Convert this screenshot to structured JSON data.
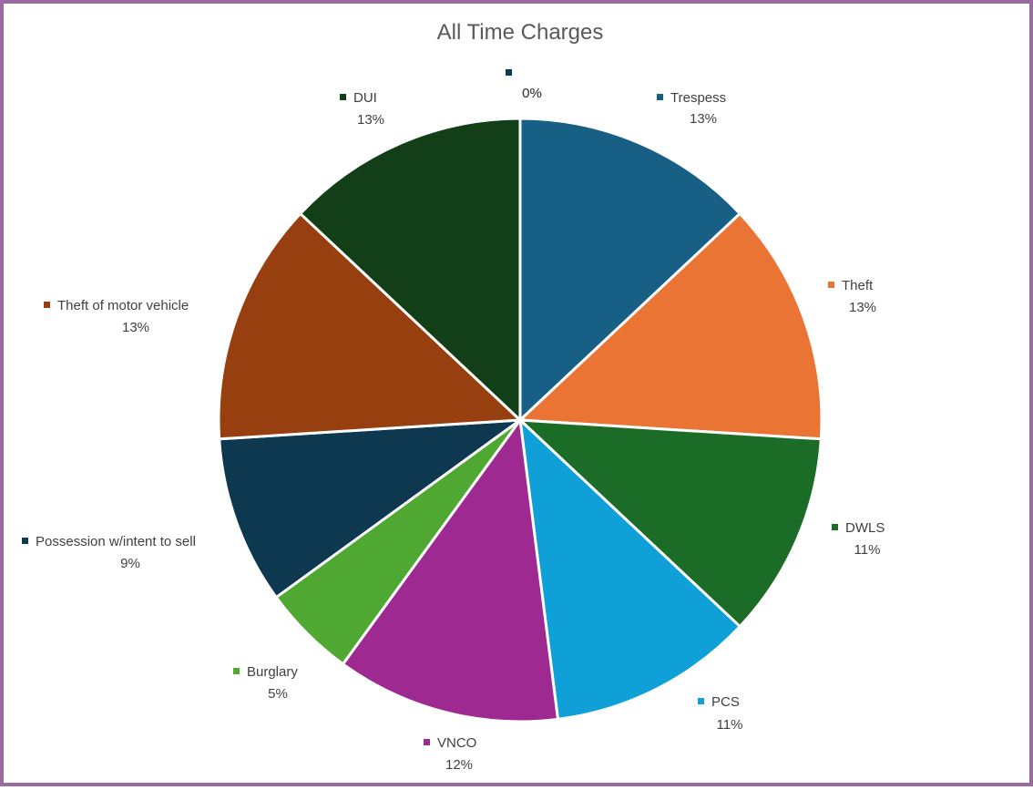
{
  "chart_data": {
    "type": "pie",
    "title": "All Time Charges",
    "legend": "none",
    "slices": [
      {
        "label": "",
        "value": 0,
        "pct_label": "0%",
        "color": "#0c3a52"
      },
      {
        "label": "",
        "value": 0,
        "pct_label": "0%",
        "color": "#0c3a52"
      },
      {
        "label": "Trespess",
        "value": 13,
        "pct_label": "13%",
        "color": "#175f84"
      },
      {
        "label": "Theft",
        "value": 13,
        "pct_label": "13%",
        "color": "#ea7433"
      },
      {
        "label": "DWLS",
        "value": 11,
        "pct_label": "11%",
        "color": "#1b6c26"
      },
      {
        "label": "PCS",
        "value": 11,
        "pct_label": "11%",
        "color": "#10a0d8"
      },
      {
        "label": "VNCO",
        "value": 12,
        "pct_label": "12%",
        "color": "#9e2a91"
      },
      {
        "label": "Burglary",
        "value": 5,
        "pct_label": "5%",
        "color": "#4ea832"
      },
      {
        "label": "Possession w/intent to sell",
        "value": 9,
        "pct_label": "9%",
        "color": "#0d384f"
      },
      {
        "label": "Theft of motor vehicle",
        "value": 13,
        "pct_label": "13%",
        "color": "#973f0f"
      },
      {
        "label": "DUI",
        "value": 13,
        "pct_label": "13%",
        "color": "#123f17"
      }
    ]
  }
}
